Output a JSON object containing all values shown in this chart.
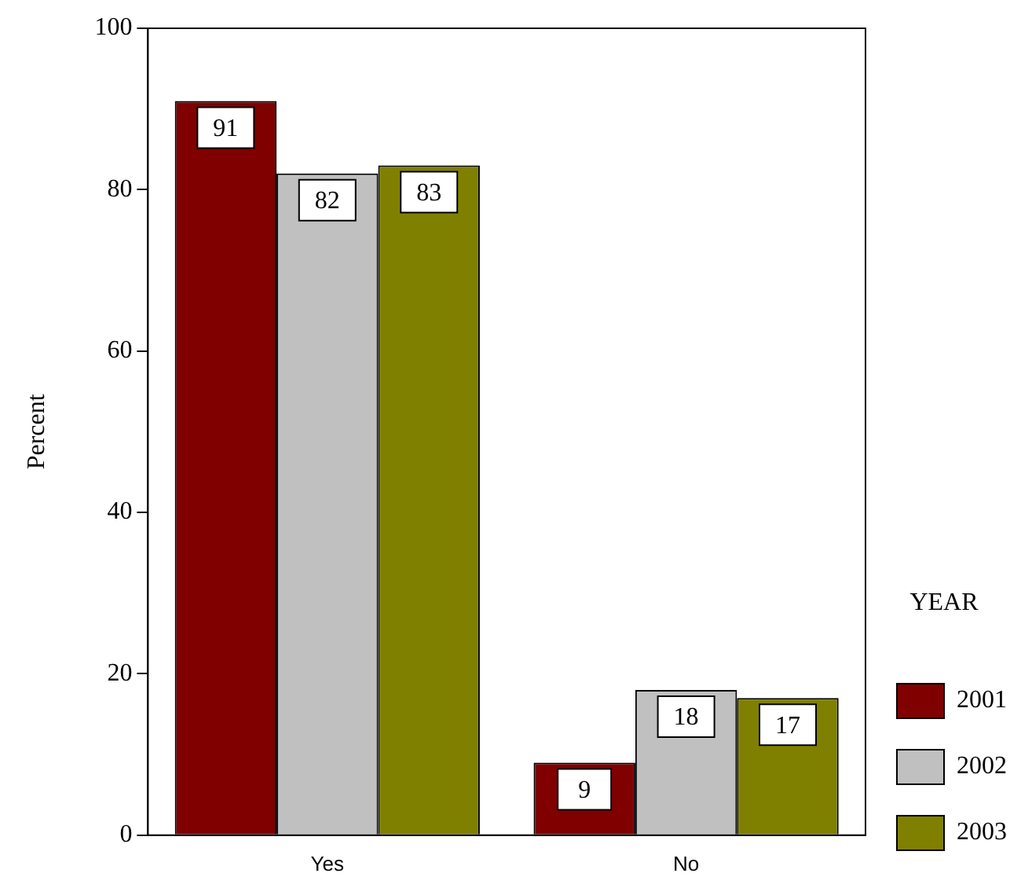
{
  "chart_data": {
    "type": "bar",
    "ylabel": "Percent",
    "legend_title": "YEAR",
    "categories": [
      "Yes",
      "No"
    ],
    "series": [
      {
        "name": "2001",
        "color": "#800000",
        "values": [
          91,
          9
        ]
      },
      {
        "name": "2002",
        "color": "#c0c0c0",
        "values": [
          82,
          18
        ]
      },
      {
        "name": "2003",
        "color": "#808000",
        "values": [
          83,
          17
        ]
      }
    ],
    "ylim": [
      0,
      100
    ],
    "yticks": [
      0,
      20,
      40,
      60,
      80,
      100
    ],
    "data_labels": true,
    "legend": "right"
  }
}
